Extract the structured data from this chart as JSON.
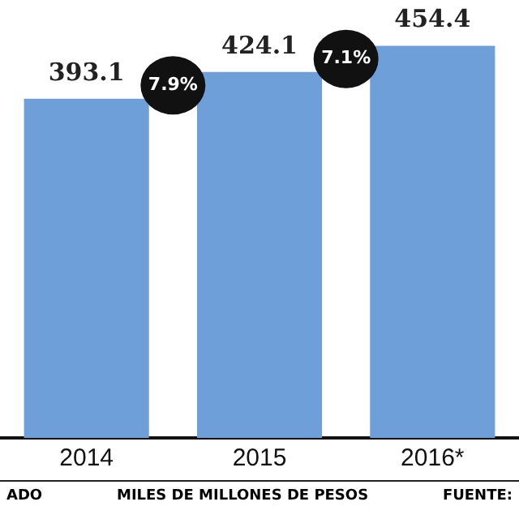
{
  "chart_data": {
    "type": "bar",
    "categories": [
      "2014",
      "2015",
      "2016*"
    ],
    "values": [
      393.1,
      424.1,
      454.4
    ],
    "color": "#6f9fd8",
    "data_labels": true,
    "tick_labels": "x",
    "grid": false,
    "legend": false,
    "annotations": [
      "7.9%",
      "7.1%",
      "ADO",
      "MILES DE MILLONES DE PESOS",
      "FUENTE:"
    ]
  }
}
